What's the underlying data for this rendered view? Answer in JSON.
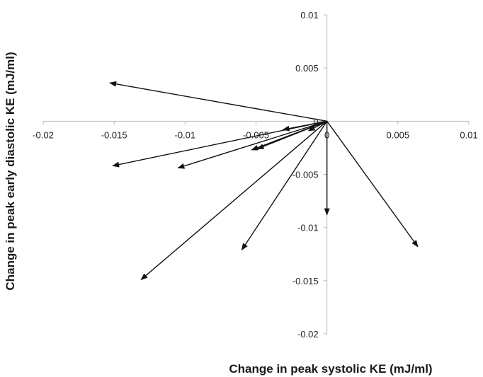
{
  "chart_data": {
    "type": "vector-scatter",
    "title": "",
    "xlabel": "Change in peak systolic KE (mJ/ml)",
    "ylabel": "Change in peak early diastolic KE (mJ/ml)",
    "xlim": [
      -0.02,
      0.01
    ],
    "ylim": [
      -0.02,
      0.01
    ],
    "x_ticks": [
      "-0.02",
      "-0.015",
      "-0.01",
      "-0.005",
      "0",
      "0.005",
      "0.01"
    ],
    "y_ticks": [
      "0.01",
      "0.005",
      "0",
      "-0.005",
      "-0.01",
      "-0.015",
      "-0.02"
    ],
    "grid": false,
    "legend": "none",
    "origin": [
      0,
      0
    ],
    "vectors": [
      {
        "dx": -0.0153,
        "dy": 0.0036
      },
      {
        "dx": -0.0151,
        "dy": -0.0042
      },
      {
        "dx": -0.0105,
        "dy": -0.0044
      },
      {
        "dx": -0.0053,
        "dy": -0.0027
      },
      {
        "dx": -0.0049,
        "dy": -0.0026
      },
      {
        "dx": -0.0031,
        "dy": -0.0008
      },
      {
        "dx": -0.0013,
        "dy": -0.0009
      },
      {
        "dx": 0.0,
        "dy": -0.0088
      },
      {
        "dx": -0.006,
        "dy": -0.0121
      },
      {
        "dx": -0.0131,
        "dy": -0.0149
      },
      {
        "dx": 0.0064,
        "dy": -0.0118
      }
    ]
  },
  "colors": {
    "axis": "#b8b8b8",
    "arrow": "#111111"
  }
}
